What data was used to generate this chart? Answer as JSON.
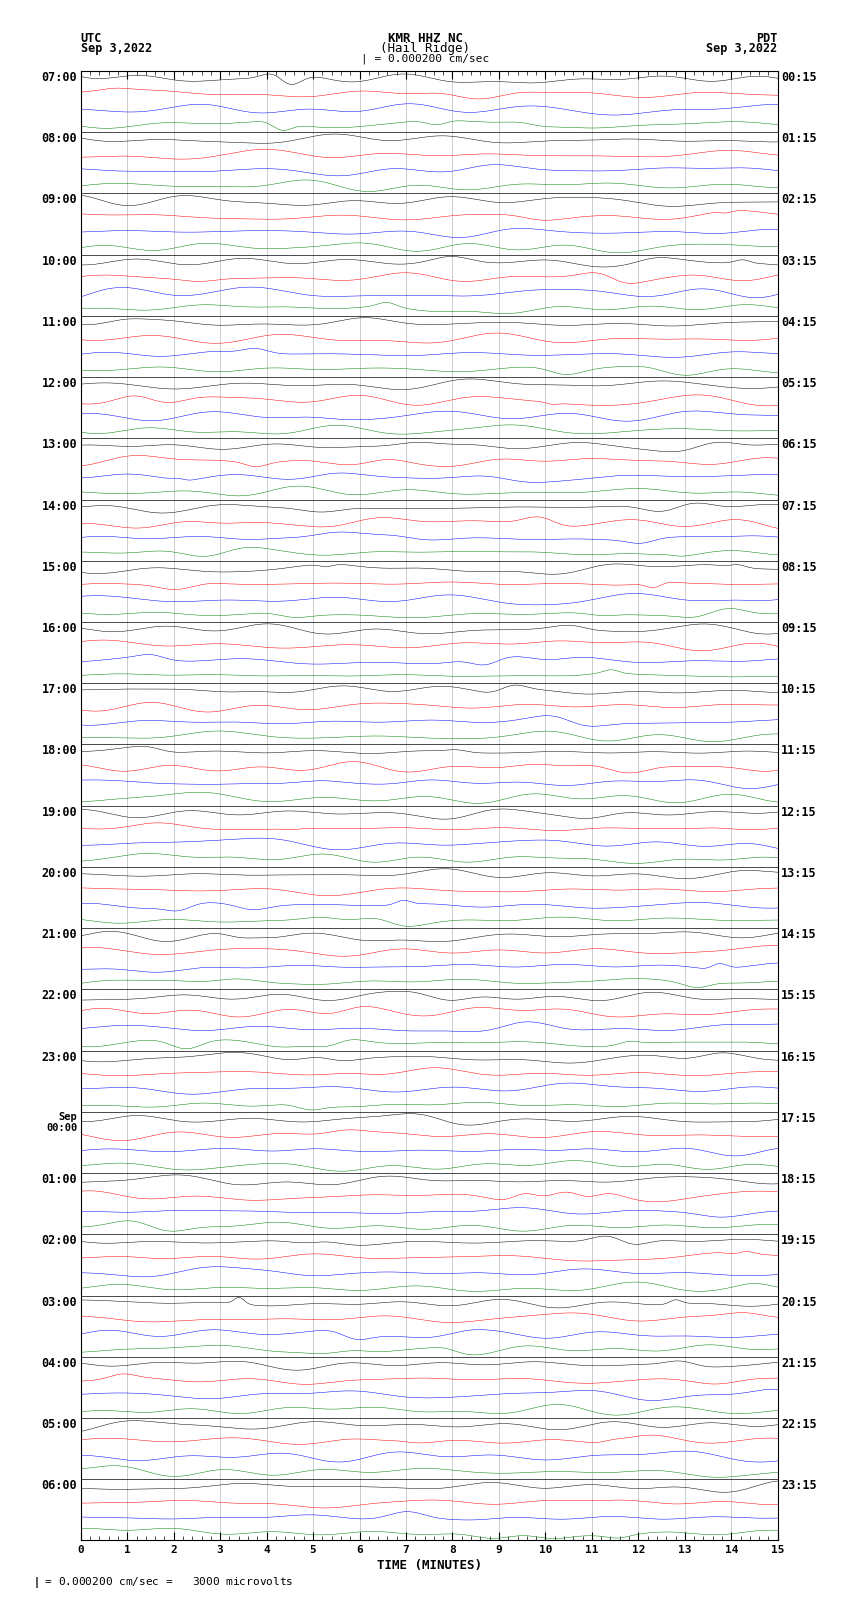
{
  "title_line1": "KMR HHZ NC",
  "title_line2": "(Hail Ridge)",
  "label_utc": "UTC",
  "label_pdt": "PDT",
  "date_left": "Sep 3,2022",
  "date_right": "Sep 3,2022",
  "scale_text": "| = 0.000200 cm/sec",
  "scale_bottom": "= 0.000200 cm/sec =   3000 microvolts",
  "xlabel": "TIME (MINUTES)",
  "xlim": [
    0,
    15
  ],
  "xticks": [
    0,
    1,
    2,
    3,
    4,
    5,
    6,
    7,
    8,
    9,
    10,
    11,
    12,
    13,
    14,
    15
  ],
  "colors": [
    "black",
    "red",
    "blue",
    "green"
  ],
  "figsize": [
    8.5,
    16.13
  ],
  "dpi": 100,
  "bg_color": "white",
  "n_rows": 96,
  "trace_amp": 0.38,
  "left_labels": [
    [
      "07:00",
      0
    ],
    [
      "08:00",
      4
    ],
    [
      "09:00",
      8
    ],
    [
      "10:00",
      12
    ],
    [
      "11:00",
      16
    ],
    [
      "12:00",
      20
    ],
    [
      "13:00",
      24
    ],
    [
      "14:00",
      28
    ],
    [
      "15:00",
      32
    ],
    [
      "16:00",
      36
    ],
    [
      "17:00",
      40
    ],
    [
      "18:00",
      44
    ],
    [
      "19:00",
      48
    ],
    [
      "20:00",
      52
    ],
    [
      "21:00",
      56
    ],
    [
      "22:00",
      60
    ],
    [
      "23:00",
      64
    ],
    [
      "Sep\n00:00",
      68
    ],
    [
      "01:00",
      72
    ],
    [
      "02:00",
      76
    ],
    [
      "03:00",
      80
    ],
    [
      "04:00",
      84
    ],
    [
      "05:00",
      88
    ],
    [
      "06:00",
      92
    ]
  ],
  "right_labels": [
    [
      "00:15",
      0
    ],
    [
      "01:15",
      4
    ],
    [
      "02:15",
      8
    ],
    [
      "03:15",
      12
    ],
    [
      "04:15",
      16
    ],
    [
      "05:15",
      20
    ],
    [
      "06:15",
      24
    ],
    [
      "07:15",
      28
    ],
    [
      "08:15",
      32
    ],
    [
      "09:15",
      36
    ],
    [
      "10:15",
      40
    ],
    [
      "11:15",
      44
    ],
    [
      "12:15",
      48
    ],
    [
      "13:15",
      52
    ],
    [
      "14:15",
      56
    ],
    [
      "15:15",
      60
    ],
    [
      "16:15",
      64
    ],
    [
      "17:15",
      68
    ],
    [
      "18:15",
      72
    ],
    [
      "19:15",
      76
    ],
    [
      "20:15",
      80
    ],
    [
      "21:15",
      84
    ],
    [
      "22:15",
      88
    ],
    [
      "23:15",
      92
    ]
  ]
}
